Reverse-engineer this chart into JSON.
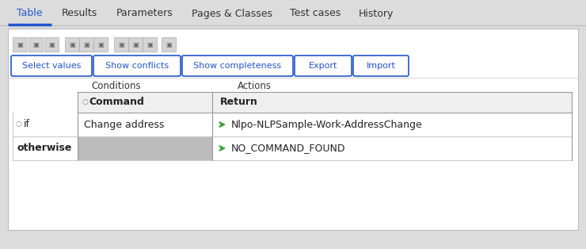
{
  "bg_color": "#dcdcdc",
  "white": "#ffffff",
  "light_gray": "#c8c8c8",
  "row_gray": "#bbbbbb",
  "dark_gray": "#555555",
  "text_dark": "#333333",
  "blue": "#2255cc",
  "green_arrow": "#3a9e3a",
  "tab_items": [
    "Table",
    "Results",
    "Parameters",
    "Pages & Classes",
    "Test cases",
    "History"
  ],
  "active_tab": "Table",
  "buttons": [
    "Select values",
    "Show conflicts",
    "Show completeness",
    "Export",
    "Import"
  ],
  "conditions_label": "Conditions",
  "actions_label": "Actions",
  "col_command": "Command",
  "col_return": "Return",
  "row_if_label": "if",
  "row_if_condition": "Change address",
  "row_if_action": "Nlpo-NLPSample-Work-AddressChange",
  "row_otherwise_label": "otherwise",
  "row_otherwise_action": "NO_COMMAND_FOUND",
  "fig_w": 7.4,
  "fig_h": 3.14,
  "dpi": 100
}
